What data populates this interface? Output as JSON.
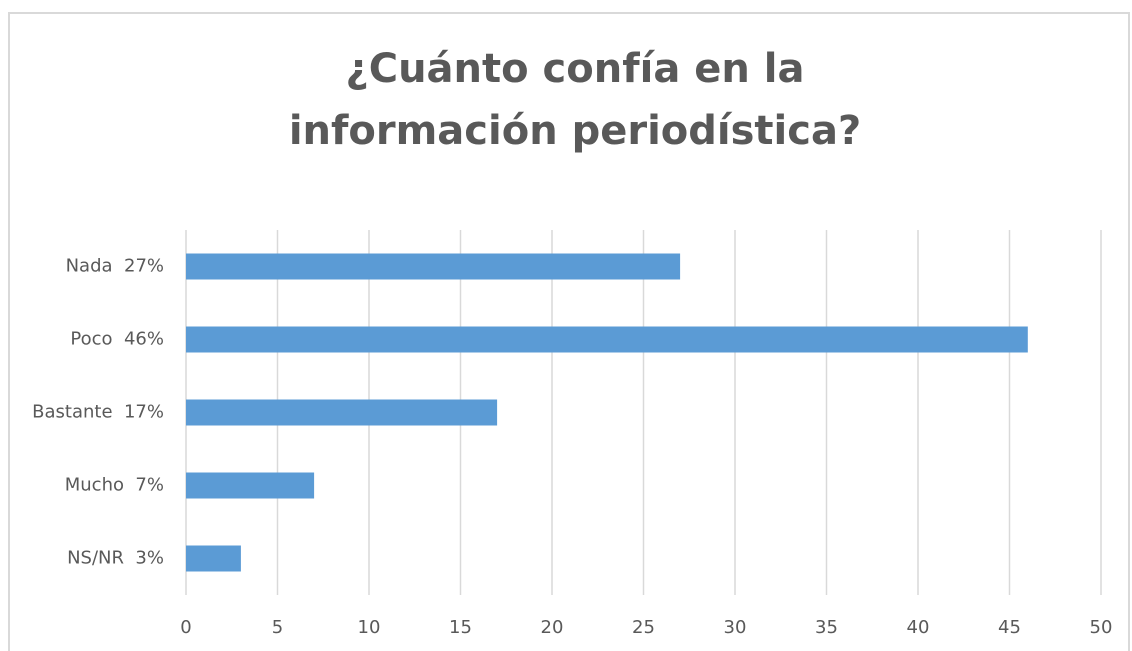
{
  "chart_data": {
    "type": "bar",
    "orientation": "horizontal",
    "title": "¿Cuánto confía en la información periodística?",
    "categories": [
      "Nada  27%",
      "Poco  46%",
      "Bastante  17%",
      "Mucho  7%",
      "NS/NR  3%"
    ],
    "values": [
      27,
      46,
      17,
      7,
      3
    ],
    "color": "#5b9bd5",
    "xlim": [
      0,
      50
    ],
    "xticks": [
      0,
      5,
      10,
      15,
      20,
      25,
      30,
      35,
      40,
      45,
      50
    ],
    "grid": true
  }
}
